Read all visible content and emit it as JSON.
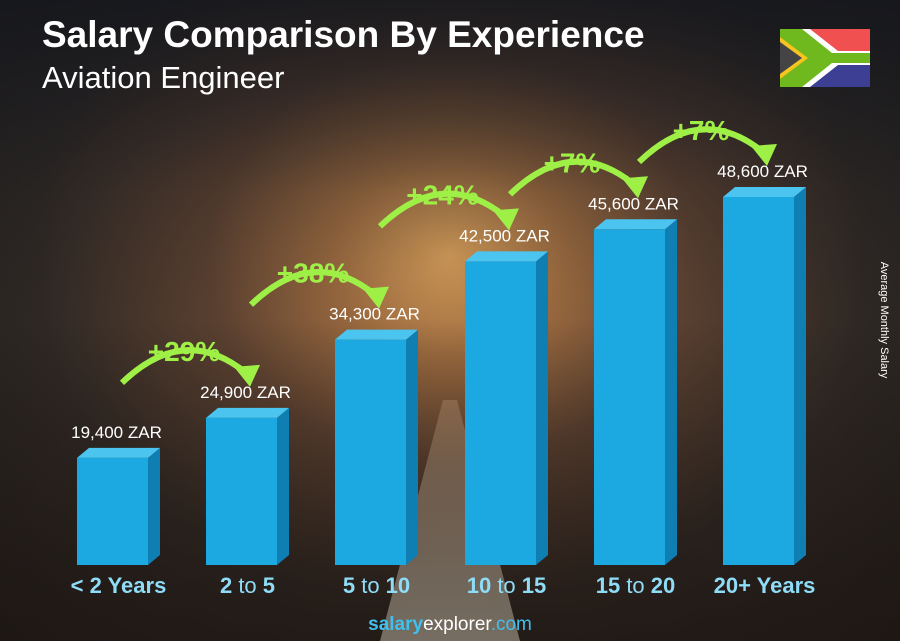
{
  "title": "Salary Comparison By Experience",
  "subtitle": "Aviation Engineer",
  "footer": {
    "part1": "salary",
    "part2": "explorer",
    ".com": ".com"
  },
  "chart_data": {
    "type": "bar",
    "ylabel": "Average Monthly Salary",
    "categories": [
      [
        "< 2 Years"
      ],
      [
        "2",
        "to",
        "5"
      ],
      [
        "5",
        "to",
        "10"
      ],
      [
        "10",
        "to",
        "15"
      ],
      [
        "15",
        "to",
        "20"
      ],
      [
        "20+ Years"
      ]
    ],
    "values": [
      19400,
      24900,
      34300,
      42500,
      45600,
      48600
    ],
    "value_labels": [
      "19,400 ZAR",
      "24,900 ZAR",
      "34,300 ZAR",
      "42,500 ZAR",
      "45,600 ZAR",
      "48,600 ZAR"
    ],
    "increases": [
      "+29%",
      "+38%",
      "+24%",
      "+7%",
      "+7%"
    ],
    "colors": {
      "bar": "#1ca8e0",
      "bar_side": "#0f7fb3",
      "bar_top": "#4cc4f0",
      "increase": "#9ef046",
      "category": "#8fdcf7"
    }
  },
  "flag": "south-africa-flag"
}
